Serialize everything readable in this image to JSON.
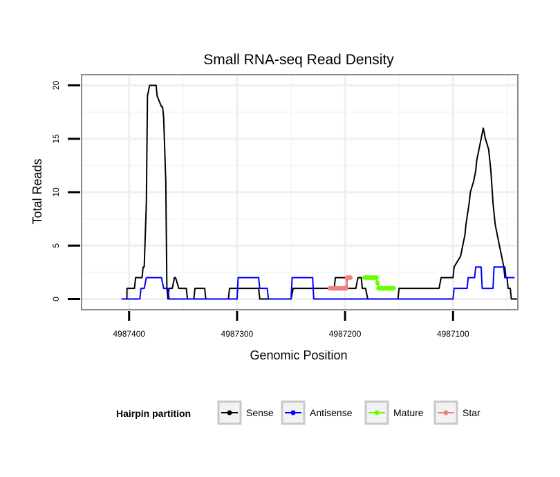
{
  "chart_data": {
    "type": "line",
    "title": "Small RNA-seq Read Density",
    "xlabel": "Genomic Position",
    "ylabel": "Total Reads",
    "xlim": [
      4987444,
      4987040
    ],
    "ylim": [
      -1,
      21
    ],
    "x_reversed": true,
    "x_ticks": [
      4987400,
      4987300,
      4987200,
      4987100
    ],
    "x_tick_labels": [
      "4987400",
      "4987300",
      "4987200",
      "4987100"
    ],
    "y_ticks": [
      0,
      5,
      10,
      15,
      20
    ],
    "y_tick_labels": [
      "0",
      "5",
      "10",
      "15",
      "20"
    ],
    "grid": true,
    "legend": {
      "title": "Hairpin partition",
      "position": "bottom",
      "entries": [
        "Sense",
        "Antisense",
        "Mature",
        "Star"
      ]
    },
    "series": [
      {
        "name": "Sense",
        "color": "#000000",
        "style": "line",
        "x": [
          4987407,
          4987402,
          4987402,
          4987395,
          4987394,
          4987388,
          4987387,
          4987386,
          4987384,
          4987383,
          4987381,
          4987375,
          4987374,
          4987370,
          4987369,
          4987368,
          4987366,
          4987365,
          4987364,
          4987363,
          4987360,
          4987358,
          4987357,
          4987354,
          4987353,
          4987347,
          4987346,
          4987340,
          4987339,
          4987330,
          4987329,
          4987308,
          4987307,
          4987280,
          4987279,
          4987250,
          4987248,
          4987210,
          4987209,
          4987199,
          4987198,
          4987190,
          4987188,
          4987185,
          4987184,
          4987181,
          4987179,
          4987151,
          4987150,
          4987113,
          4987111,
          4987100,
          4987099,
          4987093,
          4987091,
          4987089,
          4987088,
          4987085,
          4987084,
          4987081,
          4987079,
          4987078,
          4987076,
          4987074,
          4987072,
          4987070,
          4987067,
          4987065,
          4987063,
          4987061,
          4987059,
          4987057,
          4987055,
          4987053,
          4987052,
          4987050,
          4987049,
          4987047,
          4987046,
          4987045,
          4987044,
          4987043,
          4987040
        ],
        "y": [
          0,
          0,
          1,
          1,
          2,
          2,
          3,
          3,
          9,
          19,
          20,
          20,
          19,
          18,
          18,
          17,
          11,
          1,
          0,
          1,
          1,
          2,
          2,
          1,
          1,
          1,
          0,
          0,
          1,
          1,
          0,
          0,
          1,
          1,
          0,
          0,
          1,
          1,
          2,
          2,
          1,
          1,
          2,
          2,
          1,
          1,
          0,
          0,
          1,
          1,
          2,
          2,
          3,
          4,
          5,
          6,
          7,
          9,
          10,
          11,
          12,
          13,
          14,
          15,
          16,
          15,
          14,
          12,
          9,
          7,
          6,
          5,
          4,
          3,
          2,
          2,
          1,
          1,
          0,
          0,
          0,
          0,
          0
        ]
      },
      {
        "name": "Antisense",
        "color": "#0000ff",
        "style": "line",
        "x": [
          4987407,
          4987390,
          4987389,
          4987386,
          4987384,
          4987370,
          4987368,
          4987364,
          4987363,
          4987354,
          4987353,
          4987300,
          4987299,
          4987280,
          4987279,
          4987272,
          4987271,
          4987250,
          4987249,
          4987230,
          4987229,
          4987100,
          4987099,
          4987087,
          4987086,
          4987080,
          4987079,
          4987074,
          4987073,
          4987063,
          4987062,
          4987052,
          4987051,
          4987043
        ],
        "y": [
          0,
          0,
          1,
          1,
          2,
          2,
          1,
          1,
          0,
          0,
          0,
          0,
          2,
          2,
          1,
          1,
          0,
          0,
          2,
          2,
          0,
          0,
          1,
          1,
          2,
          2,
          3,
          3,
          1,
          1,
          3,
          3,
          2,
          2
        ]
      },
      {
        "name": "Mature",
        "color": "#66ff00",
        "style": "line+points",
        "x": [
          4987182,
          4987178,
          4987174,
          4987171,
          4987169,
          4987168,
          4987165,
          4987163,
          4987161,
          4987158,
          4987155
        ],
        "y": [
          2,
          2,
          2,
          2,
          1,
          1,
          1,
          1,
          1,
          1,
          1
        ]
      },
      {
        "name": "Star",
        "color": "#f08080",
        "style": "line+points",
        "x": [
          4987214,
          4987211,
          4987208,
          4987205,
          4987202,
          4987199,
          4987198,
          4987196,
          4987195
        ],
        "y": [
          1,
          1,
          1,
          1,
          1,
          1,
          2,
          2,
          2
        ]
      }
    ]
  }
}
